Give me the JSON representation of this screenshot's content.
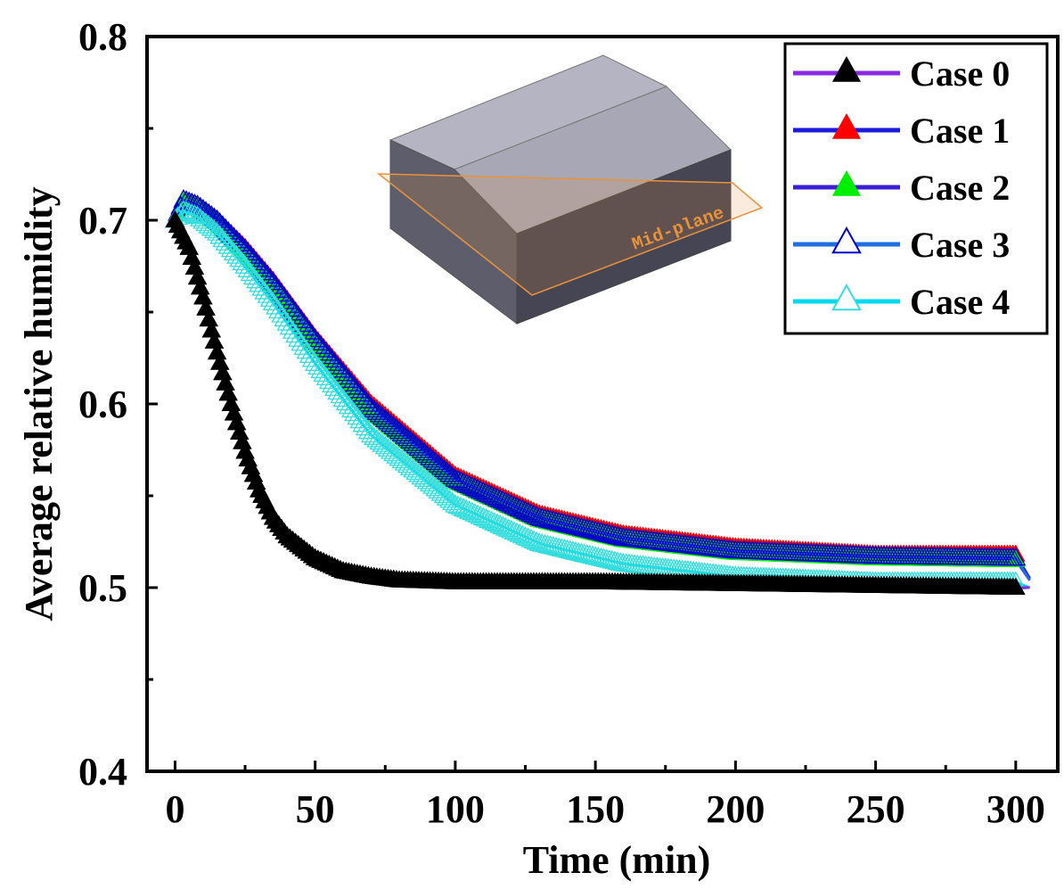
{
  "chart_data": {
    "type": "line",
    "xlabel": "Time (min)",
    "ylabel": "Average relative humidity",
    "xlim": [
      -10,
      315
    ],
    "ylim": [
      0.4,
      0.8
    ],
    "x_ticks": [
      "0",
      "50",
      "100",
      "150",
      "200",
      "250",
      "300"
    ],
    "y_ticks": [
      "0.4",
      "0.5",
      "0.6",
      "0.7",
      "0.8"
    ],
    "grid": false,
    "legend_position": "top-right",
    "series": [
      {
        "name": "Case 0",
        "marker": "filled-triangle",
        "line_color": "#8a2be2",
        "marker_color": "#000000",
        "points": [
          [
            0,
            0.7
          ],
          [
            5,
            0.685
          ],
          [
            10,
            0.658
          ],
          [
            15,
            0.628
          ],
          [
            20,
            0.6
          ],
          [
            25,
            0.574
          ],
          [
            30,
            0.553
          ],
          [
            35,
            0.538
          ],
          [
            40,
            0.528
          ],
          [
            50,
            0.516
          ],
          [
            60,
            0.509
          ],
          [
            70,
            0.506
          ],
          [
            80,
            0.504
          ],
          [
            100,
            0.503
          ],
          [
            150,
            0.503
          ],
          [
            200,
            0.502
          ],
          [
            250,
            0.501
          ],
          [
            300,
            0.5
          ],
          [
            305,
            0.5
          ]
        ]
      },
      {
        "name": "Case 1",
        "marker": "filled-triangle",
        "line_color": "#1a1adb",
        "marker_color": "#ff0000",
        "points": [
          [
            0,
            0.7
          ],
          [
            3,
            0.71
          ],
          [
            8,
            0.708
          ],
          [
            15,
            0.7
          ],
          [
            25,
            0.685
          ],
          [
            35,
            0.667
          ],
          [
            50,
            0.636
          ],
          [
            70,
            0.6
          ],
          [
            100,
            0.561
          ],
          [
            130,
            0.54
          ],
          [
            160,
            0.529
          ],
          [
            200,
            0.522
          ],
          [
            250,
            0.518
          ],
          [
            300,
            0.518
          ],
          [
            305,
            0.505
          ]
        ]
      },
      {
        "name": "Case 2",
        "marker": "filled-triangle",
        "line_color": "#3b1fd6",
        "marker_color": "#00ee00",
        "points": [
          [
            0,
            0.7
          ],
          [
            3,
            0.71
          ],
          [
            8,
            0.707
          ],
          [
            15,
            0.699
          ],
          [
            25,
            0.683
          ],
          [
            35,
            0.665
          ],
          [
            50,
            0.634
          ],
          [
            70,
            0.597
          ],
          [
            100,
            0.558
          ],
          [
            130,
            0.537
          ],
          [
            160,
            0.526
          ],
          [
            200,
            0.519
          ],
          [
            250,
            0.516
          ],
          [
            300,
            0.515
          ],
          [
            305,
            0.504
          ]
        ]
      },
      {
        "name": "Case 3",
        "marker": "hollow-triangle",
        "line_color": "#1f6fe0",
        "marker_color": "#0000cc",
        "points": [
          [
            0,
            0.7
          ],
          [
            3,
            0.711
          ],
          [
            8,
            0.708
          ],
          [
            15,
            0.7
          ],
          [
            25,
            0.684
          ],
          [
            35,
            0.666
          ],
          [
            50,
            0.635
          ],
          [
            70,
            0.598
          ],
          [
            100,
            0.559
          ],
          [
            130,
            0.538
          ],
          [
            160,
            0.527
          ],
          [
            200,
            0.52
          ],
          [
            250,
            0.517
          ],
          [
            300,
            0.516
          ],
          [
            305,
            0.504
          ]
        ]
      },
      {
        "name": "Case 4",
        "marker": "hollow-triangle",
        "line_color": "#00d8ee",
        "marker_color": "#33dddd",
        "points": [
          [
            0,
            0.7
          ],
          [
            3,
            0.705
          ],
          [
            8,
            0.702
          ],
          [
            15,
            0.693
          ],
          [
            25,
            0.675
          ],
          [
            35,
            0.655
          ],
          [
            50,
            0.622
          ],
          [
            70,
            0.583
          ],
          [
            100,
            0.545
          ],
          [
            130,
            0.524
          ],
          [
            160,
            0.513
          ],
          [
            200,
            0.506
          ],
          [
            250,
            0.503
          ],
          [
            300,
            0.503
          ],
          [
            305,
            0.5
          ]
        ]
      }
    ],
    "inset_label": "Mid-plane"
  },
  "colors": {
    "axis": "#000000",
    "inset_box_top": "#a9a9b6",
    "inset_box_front": "#4a4a58",
    "inset_box_side": "#5c5c6a",
    "inset_plane": "#e9923c"
  }
}
